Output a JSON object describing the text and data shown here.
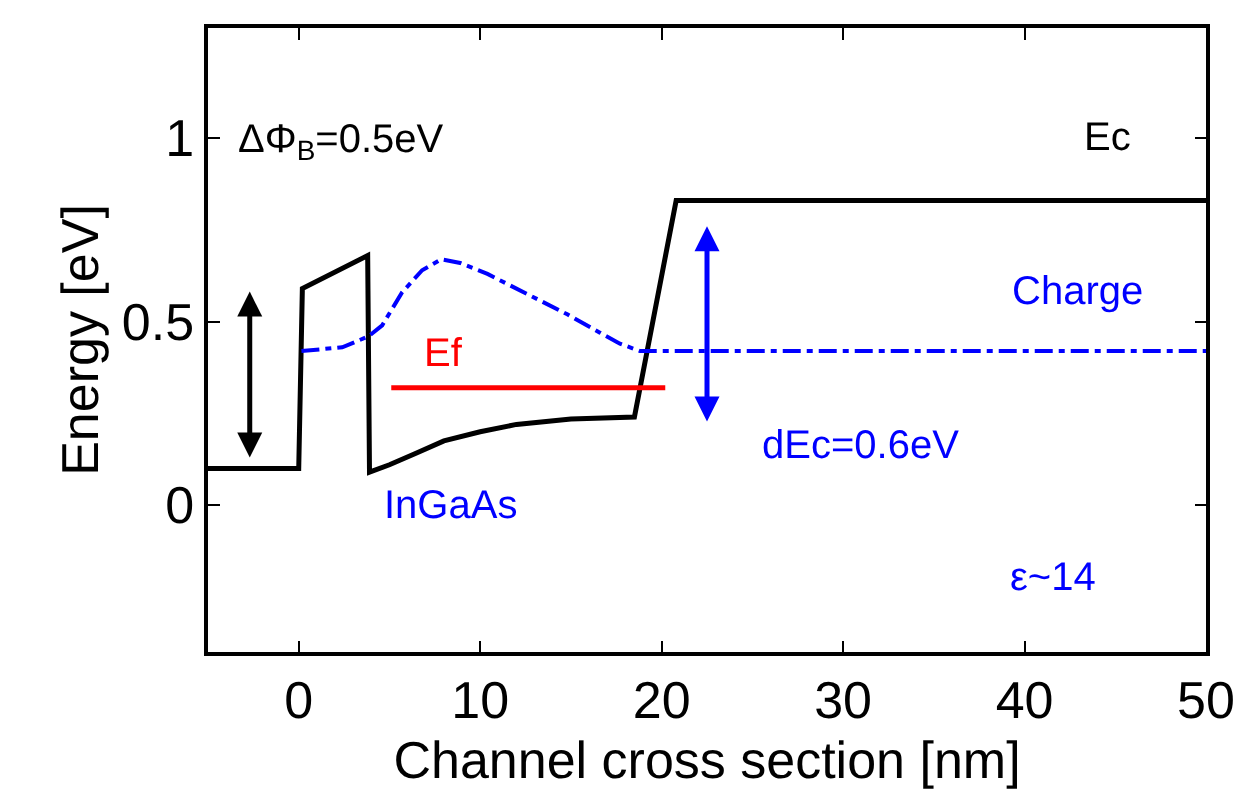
{
  "chart_data": {
    "type": "line",
    "xlabel": "Channel cross section [nm]",
    "ylabel": "Energy [eV]",
    "xlim": [
      -5,
      50
    ],
    "xticks": [
      0,
      10,
      20,
      30,
      40,
      50
    ],
    "ylim": [
      -0.4,
      1.3
    ],
    "yticks": [
      0,
      0.5,
      1
    ],
    "marker": "none",
    "series": [
      {
        "name": "Ec",
        "color": "#000000",
        "line_style": "solid",
        "x": [
          -5,
          0,
          0.2,
          3.8,
          3.9,
          5,
          6.4,
          8,
          10,
          12,
          15,
          18.5,
          20.8,
          50
        ],
        "values": [
          0.1,
          0.1,
          0.59,
          0.68,
          0.09,
          0.11,
          0.14,
          0.175,
          0.2,
          0.22,
          0.235,
          0.24,
          0.83,
          0.83
        ]
      },
      {
        "name": "Charge",
        "color": "#0000ff",
        "line_style": "dashdot",
        "x": [
          0.15,
          2.4,
          3.85,
          4.6,
          5.7,
          6.8,
          7.85,
          8.9,
          10.4,
          12.6,
          14.8,
          16.6,
          17.7,
          18.8,
          50
        ],
        "values": [
          0.42,
          0.43,
          0.46,
          0.49,
          0.58,
          0.64,
          0.67,
          0.66,
          0.63,
          0.575,
          0.52,
          0.47,
          0.44,
          0.42,
          0.42
        ]
      },
      {
        "name": "Ef",
        "color": "#ff0000",
        "line_style": "solid",
        "x": [
          5.1,
          20.2
        ],
        "values": [
          0.32,
          0.32
        ]
      }
    ],
    "annotations": [
      "ΔΦ$_{B}$=0.5eV",
      "InGaAs",
      "dEc=0.6eV",
      "ε~14"
    ]
  }
}
